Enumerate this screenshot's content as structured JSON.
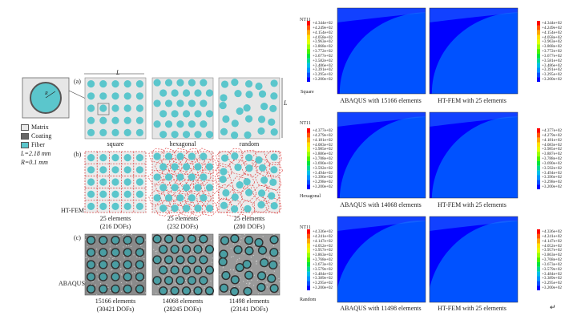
{
  "left": {
    "legend": {
      "r_label": "R",
      "items": [
        {
          "label": "Matrix",
          "color": "#e8e8e8"
        },
        {
          "label": "Coating",
          "color": "#666666"
        },
        {
          "label": "Fiber",
          "color": "#5bc6cc"
        }
      ],
      "params": [
        "L=2.18 mm",
        "R=0.1 mm"
      ]
    },
    "dim_L": "L",
    "panels": [
      {
        "tag": "(a)"
      },
      {
        "tag": "(b)",
        "side": "HT-FEM"
      },
      {
        "tag": "(c)",
        "side": "ABAQUS"
      }
    ],
    "columns": [
      "square",
      "hexagonal",
      "random"
    ],
    "htfem_captions": [
      [
        "25 elements",
        "(216 DOFs)"
      ],
      [
        "25 elements",
        "(232 DOFs)"
      ],
      [
        "25 elements",
        "(280 DOFs)"
      ]
    ],
    "abaqus_captions": [
      [
        "15166 elements",
        "(30421 DOFs)"
      ],
      [
        "14068 elements",
        "(28245 DOFs)"
      ],
      [
        "11498 elements",
        "(23141 DOFs)"
      ]
    ]
  },
  "right": {
    "rows": [
      {
        "variable": "NT11",
        "arrangement": "Square",
        "left_caption": "ABAQUS with 15166 elements",
        "right_caption": "HT-FEM with 25 elements",
        "left_values": [
          "+4.344e+02",
          "+4.249e+02",
          "+4.154e+02",
          "+4.058e+02",
          "+3.963e+02",
          "+3.868e+02",
          "+3.772e+02",
          "+3.677e+02",
          "+3.582e+02",
          "+3.486e+02",
          "+3.391e+02",
          "+3.295e+02",
          "+3.200e+02"
        ],
        "right_values": [
          "+4.344e+02",
          "+4.249e+02",
          "+4.154e+02",
          "+4.058e+02",
          "+3.963e+02",
          "+3.868e+02",
          "+3.772e+02",
          "+3.677e+02",
          "+3.581e+02",
          "+3.486e+02",
          "+3.391e+02",
          "+3.295e+02",
          "+3.200e+02"
        ]
      },
      {
        "variable": "NT11",
        "arrangement": "Hexagonal",
        "left_caption": "ABAQUS with 14068 elements",
        "right_caption": "HT-FEM with 25 elements",
        "left_values": [
          "+4.377e+02",
          "+4.279e+02",
          "+4.181e+02",
          "+4.083e+02",
          "+3.985e+02",
          "+3.886e+02",
          "+3.788e+02",
          "+3.690e+02",
          "+3.592e+02",
          "+3.494e+02",
          "+3.396e+02",
          "+3.298e+02",
          "+3.200e+02"
        ],
        "right_values": [
          "+4.377e+02",
          "+4.279e+02",
          "+4.181e+02",
          "+4.083e+02",
          "+3.985e+02",
          "+3.887e+02",
          "+3.788e+02",
          "+3.690e+02",
          "+3.592e+02",
          "+3.494e+02",
          "+3.396e+02",
          "+3.298e+02",
          "+3.200e+02"
        ]
      },
      {
        "variable": "NT11",
        "arrangement": "Random",
        "left_caption": "ABAQUS with 11498 elements",
        "right_caption": "HT-FEM with 25 elements",
        "left_values": [
          "+4.336e+02",
          "+4.241e+02",
          "+4.147e+02",
          "+4.052e+02",
          "+3.957e+02",
          "+3.863e+02",
          "+3.768e+02",
          "+3.673e+02",
          "+3.579e+02",
          "+3.484e+02",
          "+3.389e+02",
          "+3.295e+02",
          "+3.200e+02"
        ],
        "right_values": [
          "+4.336e+02",
          "+4.241e+02",
          "+4.147e+02",
          "+4.052e+02",
          "+3.957e+02",
          "+3.863e+02",
          "+3.768e+02",
          "+3.673e+02",
          "+3.579e+02",
          "+3.484e+02",
          "+3.389e+02",
          "+3.295e+02",
          "+3.200e+02"
        ]
      }
    ],
    "contour_colors": [
      "#ff0000",
      "#ff5a00",
      "#ffa800",
      "#ffe200",
      "#e4ff00",
      "#9cff00",
      "#4cf400",
      "#00e640",
      "#00d69a",
      "#00c0e8",
      "#0094ff",
      "#0052ff",
      "#0000ff"
    ]
  },
  "end_mark": "↵"
}
